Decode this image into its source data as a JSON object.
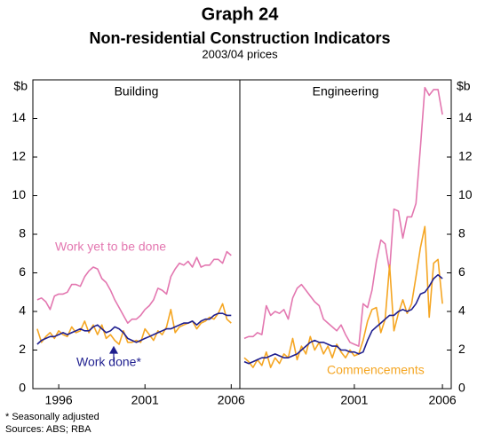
{
  "title": "Graph 24",
  "subtitle": "Non-residential Construction Indicators",
  "units_note": "2003/04 prices",
  "footnotes": [
    "* Seasonally adjusted",
    "Sources: ABS; RBA"
  ],
  "chart_data": [
    {
      "type": "line",
      "title": "Building",
      "ylabel": "$b",
      "yaxis_side": "left",
      "xlim": [
        1994.5,
        2006.5
      ],
      "xticks": [
        1996,
        2001,
        2006
      ],
      "ylim": [
        0,
        16
      ],
      "yticks": [
        0,
        2,
        4,
        6,
        8,
        10,
        12,
        14
      ],
      "x": [
        1994.75,
        1995,
        1995.25,
        1995.5,
        1995.75,
        1996,
        1996.25,
        1996.5,
        1996.75,
        1997,
        1997.25,
        1997.5,
        1997.75,
        1998,
        1998.25,
        1998.5,
        1998.75,
        1999,
        1999.25,
        1999.5,
        1999.75,
        2000,
        2000.25,
        2000.5,
        2000.75,
        2001,
        2001.25,
        2001.5,
        2001.75,
        2002,
        2002.25,
        2002.5,
        2002.75,
        2003,
        2003.25,
        2003.5,
        2003.75,
        2004,
        2004.25,
        2004.5,
        2004.75,
        2005,
        2005.25,
        2005.5,
        2005.75,
        2006
      ],
      "series": [
        {
          "color": "#e377b0",
          "values": [
            4.6,
            4.7,
            4.5,
            4.1,
            4.8,
            4.9,
            4.9,
            5.0,
            5.4,
            5.4,
            5.3,
            5.8,
            6.1,
            6.3,
            6.2,
            5.7,
            5.5,
            5.1,
            4.6,
            4.2,
            3.8,
            3.4,
            3.6,
            3.6,
            3.8,
            4.1,
            4.3,
            4.6,
            5.2,
            5.1,
            4.9,
            5.8,
            6.2,
            6.5,
            6.4,
            6.6,
            6.3,
            6.8,
            6.3,
            6.4,
            6.4,
            6.7,
            6.7,
            6.5,
            7.1,
            6.9
          ]
        },
        {
          "color": "#f5a623",
          "values": [
            3.1,
            2.4,
            2.7,
            2.9,
            2.6,
            3.0,
            2.8,
            2.7,
            3.2,
            2.9,
            3.0,
            3.5,
            2.9,
            3.3,
            2.8,
            3.3,
            2.6,
            2.8,
            2.5,
            2.3,
            3.0,
            2.4,
            2.4,
            2.5,
            2.4,
            3.1,
            2.8,
            2.5,
            3.0,
            2.8,
            3.2,
            4.1,
            2.9,
            3.2,
            3.3,
            3.4,
            3.5,
            3.1,
            3.4,
            3.5,
            3.7,
            3.6,
            3.9,
            4.4,
            3.6,
            3.4
          ]
        },
        {
          "color": "#1f1f8f",
          "values": [
            2.3,
            2.5,
            2.6,
            2.7,
            2.7,
            2.8,
            2.9,
            2.8,
            2.9,
            3.0,
            3.1,
            3.0,
            3.0,
            3.2,
            3.3,
            3.1,
            2.9,
            3.0,
            3.2,
            3.1,
            2.9,
            2.6,
            2.5,
            2.4,
            2.5,
            2.6,
            2.7,
            2.8,
            2.9,
            3.0,
            3.1,
            3.1,
            3.2,
            3.3,
            3.4,
            3.4,
            3.5,
            3.3,
            3.5,
            3.6,
            3.6,
            3.8,
            3.9,
            3.9,
            3.8,
            3.8
          ]
        }
      ],
      "annotations": [
        {
          "text": "Work yet to be done",
          "color": "#e377b0"
        },
        {
          "text": "Work done*",
          "color": "#1f1f8f"
        }
      ]
    },
    {
      "type": "line",
      "title": "Engineering",
      "ylabel": "$b",
      "yaxis_side": "right",
      "xlim": [
        1994.5,
        2006.5
      ],
      "xticks": [
        2001,
        2006
      ],
      "ylim": [
        0,
        16
      ],
      "yticks": [
        0,
        2,
        4,
        6,
        8,
        10,
        12,
        14
      ],
      "x": [
        1994.75,
        1995,
        1995.25,
        1995.5,
        1995.75,
        1996,
        1996.25,
        1996.5,
        1996.75,
        1997,
        1997.25,
        1997.5,
        1997.75,
        1998,
        1998.25,
        1998.5,
        1998.75,
        1999,
        1999.25,
        1999.5,
        1999.75,
        2000,
        2000.25,
        2000.5,
        2000.75,
        2001,
        2001.25,
        2001.5,
        2001.75,
        2002,
        2002.25,
        2002.5,
        2002.75,
        2003,
        2003.25,
        2003.5,
        2003.75,
        2004,
        2004.25,
        2004.5,
        2004.75,
        2005,
        2005.25,
        2005.5,
        2005.75,
        2006
      ],
      "series": [
        {
          "color": "#e377b0",
          "values": [
            2.6,
            2.7,
            2.7,
            2.9,
            2.8,
            4.3,
            3.8,
            4.0,
            3.9,
            4.1,
            3.6,
            4.7,
            5.2,
            5.4,
            5.1,
            4.8,
            4.5,
            4.3,
            3.6,
            3.4,
            3.2,
            3.0,
            3.3,
            2.8,
            2.4,
            2.3,
            2.2,
            4.4,
            4.2,
            5.1,
            6.6,
            7.7,
            7.5,
            6.1,
            9.3,
            9.2,
            7.8,
            8.9,
            8.9,
            9.6,
            12.5,
            15.6,
            15.2,
            15.5,
            15.5,
            14.2
          ]
        },
        {
          "color": "#f5a623",
          "values": [
            1.6,
            1.4,
            1.1,
            1.5,
            1.2,
            1.9,
            1.1,
            1.6,
            1.3,
            1.8,
            1.6,
            2.6,
            1.5,
            2.2,
            1.8,
            2.7,
            2.0,
            2.4,
            1.8,
            2.2,
            1.6,
            2.3,
            1.9,
            1.6,
            2.0,
            1.7,
            1.8,
            2.5,
            3.5,
            4.1,
            4.2,
            2.9,
            3.6,
            6.4,
            3.0,
            3.9,
            4.6,
            3.9,
            4.4,
            5.8,
            7.3,
            8.4,
            3.7,
            6.5,
            6.7,
            4.4
          ]
        },
        {
          "color": "#1f1f8f",
          "values": [
            1.4,
            1.3,
            1.4,
            1.5,
            1.6,
            1.6,
            1.7,
            1.8,
            1.7,
            1.6,
            1.6,
            1.7,
            1.8,
            2.0,
            2.2,
            2.4,
            2.5,
            2.4,
            2.4,
            2.3,
            2.2,
            2.2,
            2.0,
            2.0,
            1.9,
            1.9,
            1.8,
            1.9,
            2.5,
            3.0,
            3.2,
            3.4,
            3.6,
            3.8,
            3.8,
            4.0,
            4.1,
            4.0,
            4.1,
            4.4,
            4.9,
            5.0,
            5.3,
            5.7,
            5.9,
            5.7
          ]
        }
      ],
      "annotations": [
        {
          "text": "Commencements",
          "color": "#f5a623"
        }
      ]
    }
  ]
}
